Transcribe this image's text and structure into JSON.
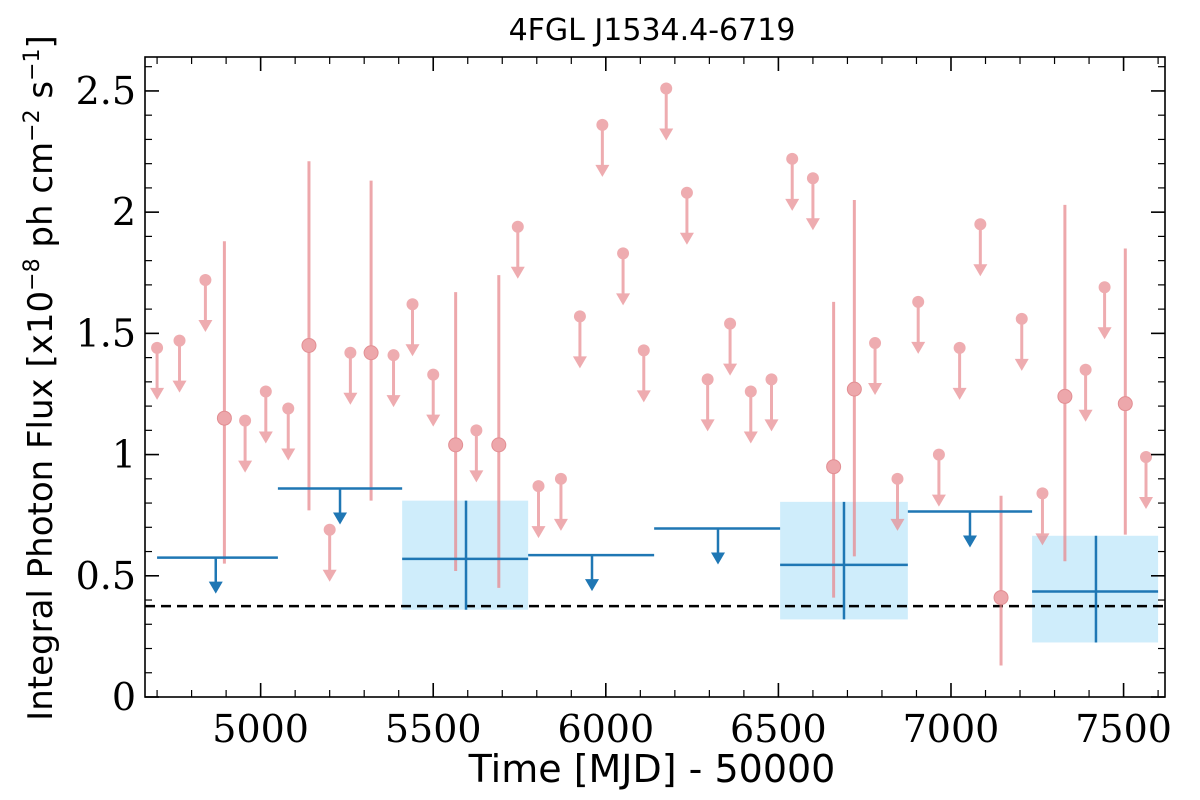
{
  "chart_data": {
    "type": "scatter",
    "title": "4FGL J1534.4-6719",
    "xlabel": "Time [MJD] - 50000",
    "ylabel_prefix": "Integral Photon Flux [x10",
    "ylabel_exp1": "−8",
    "ylabel_mid": " ph cm",
    "ylabel_exp2": "−2",
    "ylabel_mid2": " s",
    "ylabel_exp3": "−1",
    "ylabel_suffix": "]",
    "xlim": [
      4665,
      7620
    ],
    "ylim": [
      0,
      2.64
    ],
    "x_ticks": [
      5000,
      5500,
      6000,
      6500,
      7000,
      7500
    ],
    "x_tick_labels": [
      "5000",
      "5500",
      "6000",
      "6500",
      "7000",
      "7500"
    ],
    "y_ticks": [
      0,
      0.5,
      1,
      1.5,
      2,
      2.5
    ],
    "y_tick_labels": [
      "0",
      "0.5",
      "1",
      "1.5",
      "2",
      "2.5"
    ],
    "reference_line": {
      "y": 0.375,
      "style": "dashed"
    },
    "colors": {
      "fine": "#e88a8f",
      "coarse": "#1f77b4",
      "band": "#cfedfb",
      "reference": "#000000"
    },
    "series": [
      {
        "binning": "fine",
        "upper_limits": [
          {
            "x": 4700,
            "y": 1.44
          },
          {
            "x": 4765,
            "y": 1.47
          },
          {
            "x": 4840,
            "y": 1.72
          },
          {
            "x": 4955,
            "y": 1.14
          },
          {
            "x": 5015,
            "y": 1.26
          },
          {
            "x": 5080,
            "y": 1.19
          },
          {
            "x": 5200,
            "y": 0.69
          },
          {
            "x": 5260,
            "y": 1.42
          },
          {
            "x": 5385,
            "y": 1.41
          },
          {
            "x": 5440,
            "y": 1.62
          },
          {
            "x": 5500,
            "y": 1.33
          },
          {
            "x": 5625,
            "y": 1.1
          },
          {
            "x": 5745,
            "y": 1.94
          },
          {
            "x": 5805,
            "y": 0.87
          },
          {
            "x": 5870,
            "y": 0.9
          },
          {
            "x": 5925,
            "y": 1.57
          },
          {
            "x": 5990,
            "y": 2.36
          },
          {
            "x": 6050,
            "y": 1.83
          },
          {
            "x": 6110,
            "y": 1.43
          },
          {
            "x": 6175,
            "y": 2.51
          },
          {
            "x": 6235,
            "y": 2.08
          },
          {
            "x": 6295,
            "y": 1.31
          },
          {
            "x": 6360,
            "y": 1.54
          },
          {
            "x": 6420,
            "y": 1.26
          },
          {
            "x": 6480,
            "y": 1.31
          },
          {
            "x": 6540,
            "y": 2.22
          },
          {
            "x": 6600,
            "y": 2.14
          },
          {
            "x": 6780,
            "y": 1.46
          },
          {
            "x": 6845,
            "y": 0.9
          },
          {
            "x": 6905,
            "y": 1.63
          },
          {
            "x": 6965,
            "y": 1.0
          },
          {
            "x": 7025,
            "y": 1.44
          },
          {
            "x": 7085,
            "y": 1.95
          },
          {
            "x": 7205,
            "y": 1.56
          },
          {
            "x": 7265,
            "y": 0.84
          },
          {
            "x": 7390,
            "y": 1.35
          },
          {
            "x": 7445,
            "y": 1.69
          },
          {
            "x": 7565,
            "y": 0.99
          }
        ],
        "detections": [
          {
            "x": 4895,
            "y": 1.15,
            "ylo": 0.55,
            "yhi": 1.88
          },
          {
            "x": 5140,
            "y": 1.45,
            "ylo": 0.77,
            "yhi": 2.21
          },
          {
            "x": 5320,
            "y": 1.42,
            "ylo": 0.81,
            "yhi": 2.13
          },
          {
            "x": 5565,
            "y": 1.04,
            "ylo": 0.52,
            "yhi": 1.67
          },
          {
            "x": 5690,
            "y": 1.04,
            "ylo": 0.45,
            "yhi": 1.74
          },
          {
            "x": 6660,
            "y": 0.95,
            "ylo": 0.41,
            "yhi": 1.63
          },
          {
            "x": 6720,
            "y": 1.27,
            "ylo": 0.58,
            "yhi": 2.05
          },
          {
            "x": 7145,
            "y": 0.41,
            "ylo": 0.13,
            "yhi": 0.83
          },
          {
            "x": 7330,
            "y": 1.24,
            "ylo": 0.56,
            "yhi": 2.03
          },
          {
            "x": 7505,
            "y": 1.21,
            "ylo": 0.67,
            "yhi": 1.85
          }
        ]
      },
      {
        "binning": "coarse",
        "upper_limits": [
          {
            "x0": 4700,
            "x1": 5050,
            "y": 0.575,
            "x_arrow": 4870
          },
          {
            "x0": 5050,
            "x1": 5410,
            "y": 0.86,
            "x_arrow": 5230
          },
          {
            "x0": 5775,
            "x1": 6140,
            "y": 0.585,
            "x_arrow": 5960
          },
          {
            "x0": 6140,
            "x1": 6505,
            "y": 0.695,
            "x_arrow": 6325
          },
          {
            "x0": 6875,
            "x1": 7235,
            "y": 0.765,
            "x_arrow": 7055
          }
        ],
        "detections": [
          {
            "x": 5595,
            "x0": 5410,
            "x1": 5775,
            "y": 0.57,
            "ylo": 0.36,
            "yhi": 0.81
          },
          {
            "x": 6690,
            "x0": 6505,
            "x1": 6875,
            "y": 0.545,
            "ylo": 0.32,
            "yhi": 0.805
          },
          {
            "x": 7420,
            "x0": 7235,
            "x1": 7600,
            "y": 0.435,
            "ylo": 0.225,
            "yhi": 0.665
          }
        ]
      }
    ]
  }
}
